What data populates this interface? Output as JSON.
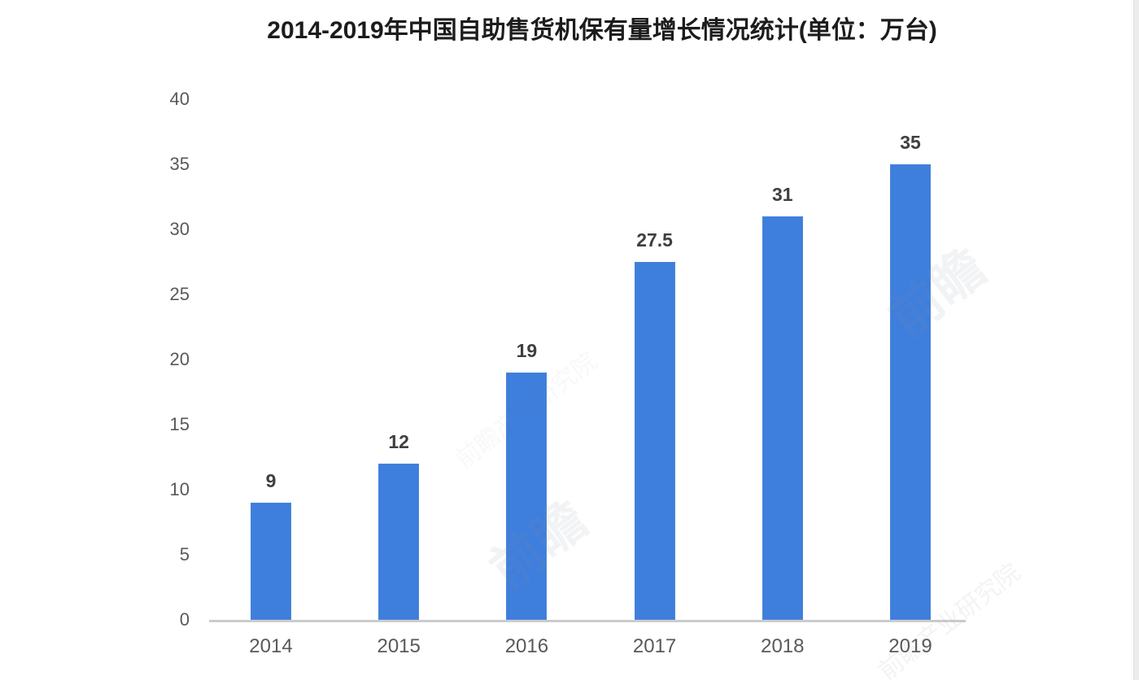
{
  "chart_data": {
    "type": "bar",
    "title": "2014-2019年中国自助售货机保有量增长情况统计(单位：万台)",
    "categories": [
      "2014",
      "2015",
      "2016",
      "2017",
      "2018",
      "2019"
    ],
    "values": [
      9,
      12,
      19,
      27.5,
      31,
      35
    ],
    "value_labels": [
      "9",
      "12",
      "19",
      "27.5",
      "31",
      "35"
    ],
    "xlabel": "",
    "ylabel": "",
    "ylim": [
      0,
      40
    ],
    "yticks": [
      0,
      5,
      10,
      15,
      20,
      25,
      30,
      35,
      40
    ],
    "grid": false,
    "legend": "none",
    "bar_color": "#3e7edc",
    "bar_border_color": "#4a86d8",
    "axis_line_color": "#cbcbcb",
    "tick_label_color": "#595959",
    "value_label_color": "#3f3f3f",
    "title_color": "#1c1c1c"
  },
  "watermarks": [
    {
      "text": "前瞻"
    },
    {
      "text": "前瞻"
    },
    {
      "text": "前瞻产业研究院"
    },
    {
      "text": "前瞻产业研究院"
    }
  ]
}
